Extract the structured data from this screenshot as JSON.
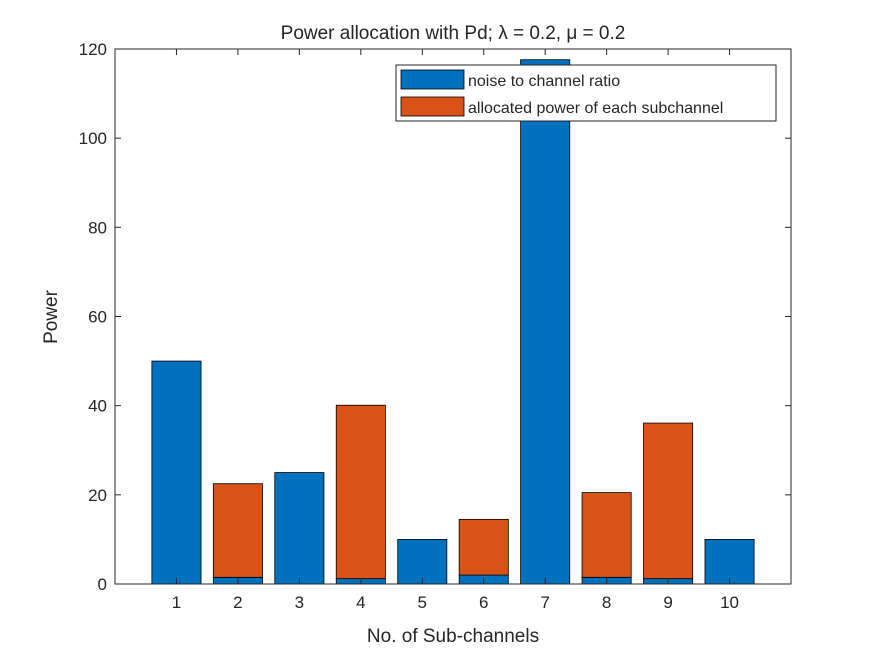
{
  "chart_data": {
    "type": "bar",
    "stacked": true,
    "title": "Power allocation with Pd; λ = 0.2, μ = 0.2",
    "xlabel": "No. of Sub-channels",
    "ylabel": "Power",
    "categories": [
      "1",
      "2",
      "3",
      "4",
      "5",
      "6",
      "7",
      "8",
      "9",
      "10"
    ],
    "ylim": [
      0,
      120
    ],
    "yticks": [
      0,
      20,
      40,
      60,
      80,
      100,
      120
    ],
    "series": [
      {
        "name": "noise to channel ratio",
        "color": "#0072BD",
        "values": [
          50,
          1.5,
          25,
          1.2,
          10,
          2,
          117.6,
          1.5,
          1.2,
          10
        ]
      },
      {
        "name": "allocated power of each subchannel",
        "color": "#D95319",
        "values": [
          0,
          21,
          0,
          38.9,
          0,
          12.5,
          0,
          19,
          34.9,
          0
        ]
      }
    ],
    "legend_position": "top-right",
    "grid": false
  }
}
